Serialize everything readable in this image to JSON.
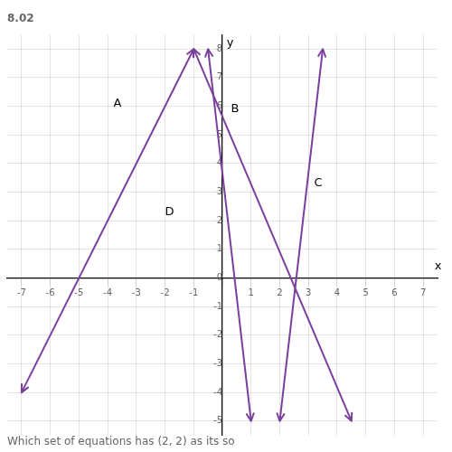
{
  "chart_data": {
    "type": "line",
    "title": "8.02",
    "subtitle": "Which set of equations has (2, 2) as its so",
    "xlim": [
      -7.5,
      7.5
    ],
    "ylim": [
      -5.5,
      8.5
    ],
    "xticks": [
      -7,
      -6,
      -5,
      -4,
      -3,
      -2,
      -1,
      {
        "value": 0,
        "label": null
      },
      1,
      2,
      3,
      4,
      5,
      6,
      7
    ],
    "yticks": [
      -5,
      -4,
      -3,
      -2,
      -1,
      0,
      1,
      2,
      3,
      4,
      5,
      6,
      7,
      8
    ],
    "grid": true,
    "color": "#7B3F9E",
    "marker": "arrow",
    "series": [
      {
        "x": [
          -7.0,
          -1.0
        ],
        "values": [
          -4.0,
          8.0
        ]
      },
      {
        "x": [
          1.0,
          -0.5
        ],
        "values": [
          -5.0,
          8.0
        ]
      },
      {
        "x": [
          2.0,
          3.5
        ],
        "values": [
          -5.0,
          8.0
        ]
      },
      {
        "x": [
          -1.0,
          4.5
        ],
        "values": [
          8.0,
          -5.0
        ]
      }
    ],
    "annotations": [
      {
        "text": "A",
        "x": -3.8,
        "y": 6.0
      },
      {
        "text": "B",
        "x": 0.3,
        "y": 5.8
      },
      {
        "text": "C",
        "x": 3.2,
        "y": 3.2
      },
      {
        "text": "D",
        "x": -2.0,
        "y": 2.2
      },
      {
        "text": "x",
        "x": 7.4,
        "y": 0.3
      },
      {
        "text": "y",
        "x": 0.15,
        "y": 8.1
      }
    ]
  }
}
